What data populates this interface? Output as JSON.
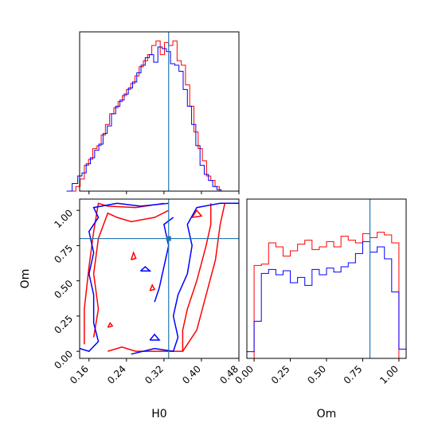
{
  "chart_data": {
    "type": "corner",
    "parameters": [
      "H0",
      "Om"
    ],
    "truths": {
      "H0": 0.33,
      "Om": 0.8
    },
    "colors": {
      "red": "#ff0000",
      "blue": "#0000ff",
      "truth": "#1f77b4"
    },
    "panels": {
      "hist_h0": {
        "type": "histogram",
        "xlim": [
          0.14,
          0.48
        ],
        "xticks": [
          0.16,
          0.24,
          0.32,
          0.4,
          0.48
        ],
        "tick_labels_shown": false,
        "series": [
          {
            "color": "red",
            "edges": [
              0.112,
              0.132,
              0.141,
              0.15,
              0.159,
              0.168,
              0.177,
              0.186,
              0.195,
              0.204,
              0.213,
              0.222,
              0.231,
              0.24,
              0.249,
              0.258,
              0.267,
              0.276,
              0.285,
              0.294,
              0.303,
              0.312,
              0.321,
              0.33,
              0.339,
              0.348,
              0.357,
              0.366,
              0.375,
              0.384,
              0.393,
              0.402,
              0.411,
              0.42,
              0.429,
              0.438,
              0.447,
              0.456
            ],
            "counts": [
              0.0,
              0.03,
              0.08,
              0.17,
              0.21,
              0.28,
              0.3,
              0.37,
              0.44,
              0.51,
              0.55,
              0.59,
              0.63,
              0.67,
              0.71,
              0.76,
              0.82,
              0.86,
              0.9,
              0.96,
              0.99,
              0.9,
              0.98,
              0.96,
              0.99,
              0.86,
              0.83,
              0.7,
              0.56,
              0.39,
              0.28,
              0.2,
              0.1,
              0.07,
              0.03,
              0.0,
              0.0
            ]
          },
          {
            "color": "blue",
            "edges": [
              0.112,
              0.124,
              0.136,
              0.145,
              0.154,
              0.163,
              0.172,
              0.181,
              0.19,
              0.199,
              0.208,
              0.217,
              0.226,
              0.235,
              0.244,
              0.253,
              0.262,
              0.271,
              0.28,
              0.289,
              0.298,
              0.307,
              0.316,
              0.325,
              0.334,
              0.343,
              0.352,
              0.361,
              0.37,
              0.379,
              0.388,
              0.397,
              0.406,
              0.415,
              0.424,
              0.433,
              0.442,
              0.451,
              0.46
            ],
            "counts": [
              0.0,
              0.05,
              0.1,
              0.12,
              0.18,
              0.22,
              0.27,
              0.31,
              0.38,
              0.43,
              0.51,
              0.56,
              0.6,
              0.64,
              0.68,
              0.72,
              0.78,
              0.83,
              0.88,
              0.9,
              0.85,
              0.95,
              0.94,
              0.92,
              0.84,
              0.83,
              0.79,
              0.67,
              0.56,
              0.44,
              0.3,
              0.17,
              0.11,
              0.07,
              0.03,
              0.01,
              0.0,
              0.0
            ]
          }
        ]
      },
      "contour_h0_om": {
        "type": "contour",
        "xlim": [
          0.14,
          0.48
        ],
        "ylim": [
          -0.05,
          1.08
        ],
        "xticks": [
          0.16,
          0.24,
          0.32,
          0.4,
          0.48
        ],
        "yticks": [
          0.0,
          0.25,
          0.5,
          0.75,
          1.0
        ],
        "series": [
          {
            "color": "red",
            "contours": [
              [
                [
                  0.2,
                  0.0
                ],
                [
                  0.23,
                  0.03
                ],
                [
                  0.26,
                  0.0
                ],
                [
                  0.3,
                  0.0
                ],
                [
                  0.33,
                  0.0
                ],
                [
                  0.36,
                  0.0
                ],
                [
                  0.36,
                  0.15
                ],
                [
                  0.37,
                  0.3
                ],
                [
                  0.39,
                  0.5
                ],
                [
                  0.41,
                  0.75
                ],
                [
                  0.42,
                  0.9
                ],
                [
                  0.42,
                  1.05
                ]
              ],
              [
                [
                  0.36,
                  0.0
                ],
                [
                  0.39,
                  0.15
                ],
                [
                  0.41,
                  0.4
                ],
                [
                  0.43,
                  0.65
                ],
                [
                  0.44,
                  0.9
                ],
                [
                  0.45,
                  1.05
                ]
              ],
              [
                [
                  0.15,
                  0.05
                ],
                [
                  0.15,
                  0.3
                ],
                [
                  0.16,
                  0.6
                ],
                [
                  0.17,
                  0.85
                ],
                [
                  0.18,
                  1.05
                ],
                [
                  0.2,
                  1.03
                ],
                [
                  0.26,
                  1.02
                ],
                [
                  0.32,
                  1.05
                ]
              ],
              [
                [
                  0.17,
                  0.1
                ],
                [
                  0.18,
                  0.3
                ],
                [
                  0.17,
                  0.55
                ],
                [
                  0.18,
                  0.8
                ],
                [
                  0.2,
                  0.98
                ],
                [
                  0.22,
                  0.95
                ],
                [
                  0.25,
                  0.92
                ],
                [
                  0.3,
                  0.95
                ],
                [
                  0.33,
                  1.0
                ]
              ],
              [
                [
                  0.25,
                  0.65
                ],
                [
                  0.255,
                  0.7
                ],
                [
                  0.26,
                  0.66
                ],
                [
                  0.25,
                  0.65
                ]
              ],
              [
                [
                  0.29,
                  0.43
                ],
                [
                  0.295,
                  0.47
                ],
                [
                  0.3,
                  0.44
                ],
                [
                  0.29,
                  0.43
                ]
              ],
              [
                [
                  0.2,
                  0.17
                ],
                [
                  0.205,
                  0.2
                ],
                [
                  0.21,
                  0.18
                ],
                [
                  0.2,
                  0.17
                ]
              ],
              [
                [
                  0.38,
                  0.95
                ],
                [
                  0.39,
                  1.0
                ],
                [
                  0.4,
                  0.96
                ],
                [
                  0.38,
                  0.95
                ]
              ]
            ]
          },
          {
            "color": "blue",
            "contours": [
              [
                [
                  0.14,
                  0.02
                ],
                [
                  0.16,
                  0.0
                ],
                [
                  0.18,
                  0.07
                ],
                [
                  0.17,
                  0.2
                ],
                [
                  0.17,
                  0.4
                ],
                [
                  0.16,
                  0.55
                ],
                [
                  0.17,
                  0.7
                ],
                [
                  0.16,
                  0.85
                ],
                [
                  0.18,
                  0.95
                ],
                [
                  0.17,
                  1.02
                ],
                [
                  0.22,
                  1.05
                ],
                [
                  0.27,
                  1.03
                ],
                [
                  0.33,
                  1.05
                ]
              ],
              [
                [
                  0.25,
                  -0.02
                ],
                [
                  0.3,
                  0.02
                ],
                [
                  0.34,
                  0.0
                ],
                [
                  0.35,
                  0.1
                ],
                [
                  0.34,
                  0.25
                ],
                [
                  0.35,
                  0.4
                ],
                [
                  0.37,
                  0.55
                ],
                [
                  0.38,
                  0.75
                ],
                [
                  0.37,
                  0.9
                ],
                [
                  0.39,
                  1.02
                ],
                [
                  0.44,
                  1.05
                ],
                [
                  0.48,
                  1.05
                ]
              ],
              [
                [
                  0.3,
                  0.35
                ],
                [
                  0.31,
                  0.45
                ],
                [
                  0.32,
                  0.6
                ],
                [
                  0.33,
                  0.75
                ],
                [
                  0.32,
                  0.9
                ],
                [
                  0.34,
                  0.95
                ]
              ],
              [
                [
                  0.27,
                  0.57
                ],
                [
                  0.28,
                  0.6
                ],
                [
                  0.29,
                  0.57
                ],
                [
                  0.27,
                  0.57
                ]
              ],
              [
                [
                  0.29,
                  0.08
                ],
                [
                  0.3,
                  0.12
                ],
                [
                  0.31,
                  0.08
                ],
                [
                  0.29,
                  0.08
                ]
              ]
            ]
          }
        ]
      },
      "hist_om": {
        "type": "histogram",
        "xlim": [
          -0.05,
          1.05
        ],
        "xticks": [
          0.0,
          0.25,
          0.5,
          0.75,
          1.0
        ],
        "series": [
          {
            "color": "red",
            "edges": [
              0.0,
              0.05,
              0.1,
              0.15,
              0.2,
              0.25,
              0.3,
              0.35,
              0.4,
              0.45,
              0.5,
              0.55,
              0.6,
              0.65,
              0.7,
              0.75,
              0.8,
              0.85,
              0.9,
              0.95,
              1.0
            ],
            "counts": [
              0.7,
              0.71,
              0.87,
              0.84,
              0.77,
              0.81,
              0.86,
              0.89,
              0.82,
              0.84,
              0.88,
              0.84,
              0.92,
              0.89,
              0.87,
              0.94,
              0.91,
              0.95,
              0.93,
              0.87
            ]
          },
          {
            "color": "blue",
            "edges": [
              -0.05,
              0.0,
              0.05,
              0.1,
              0.15,
              0.2,
              0.25,
              0.3,
              0.35,
              0.4,
              0.45,
              0.5,
              0.55,
              0.6,
              0.65,
              0.7,
              0.75,
              0.8,
              0.85,
              0.9,
              0.95,
              1.0,
              1.05
            ],
            "counts": [
              0.05,
              0.28,
              0.64,
              0.67,
              0.63,
              0.66,
              0.57,
              0.61,
              0.55,
              0.67,
              0.63,
              0.68,
              0.65,
              0.69,
              0.72,
              0.79,
              0.88,
              0.8,
              0.84,
              0.75,
              0.5,
              0.07
            ]
          }
        ]
      }
    }
  }
}
